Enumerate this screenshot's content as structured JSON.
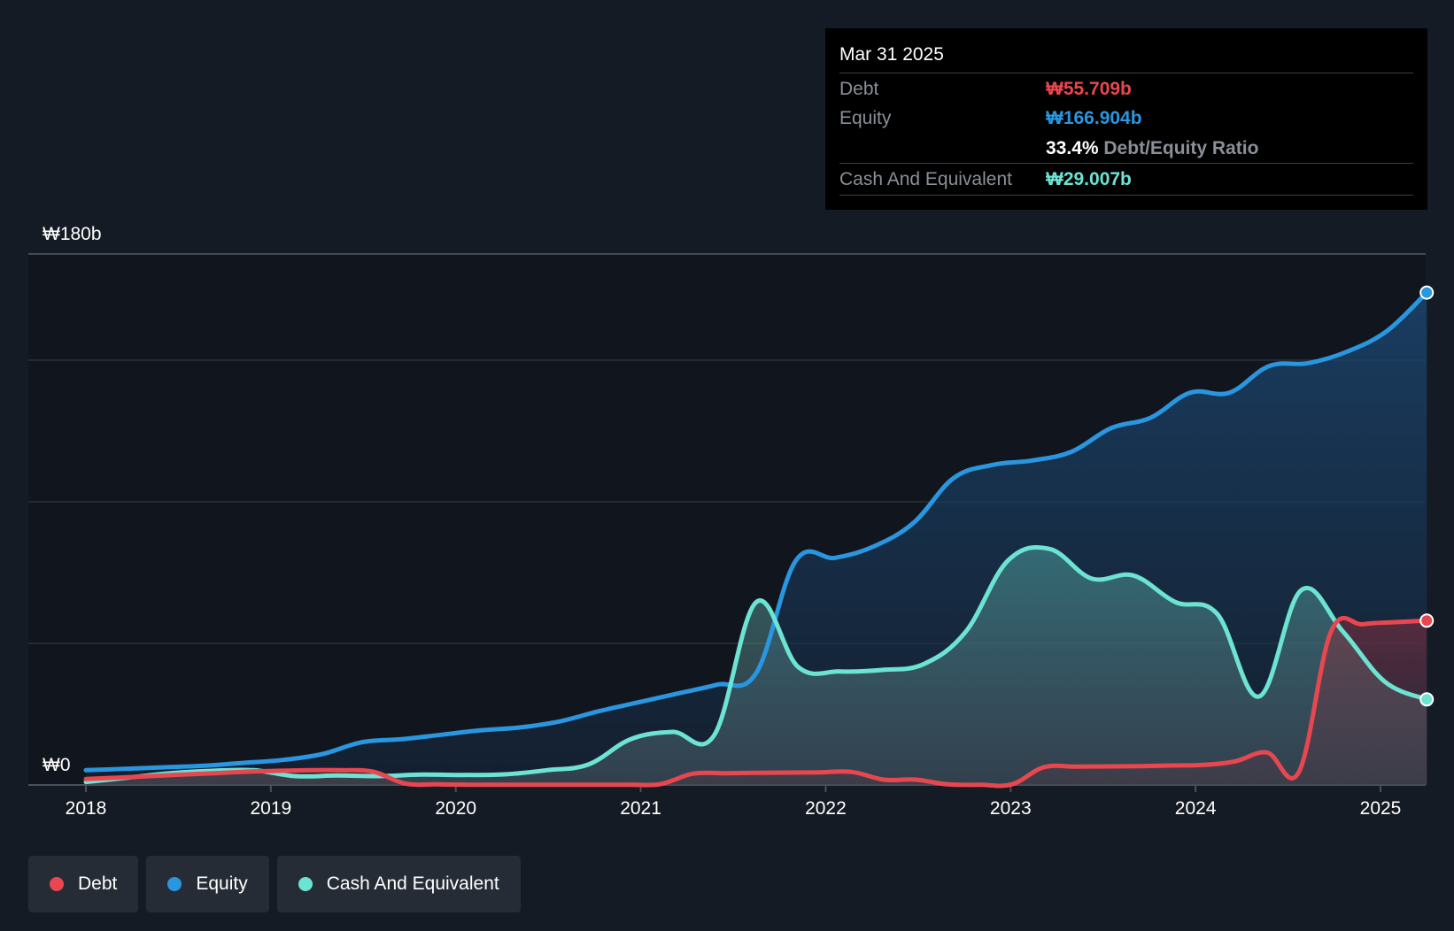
{
  "chart_data": {
    "type": "area",
    "x_start": 2018.0,
    "x_end": 2025.25,
    "xlim": [
      2017.75,
      2025.25
    ],
    "ylim": [
      0,
      180
    ],
    "y_tick_labels": [
      "₩0",
      "₩180b"
    ],
    "x_tick_labels": [
      "2018",
      "2019",
      "2020",
      "2021",
      "2022",
      "2023",
      "2024",
      "2025"
    ],
    "gridlines": [
      0,
      48,
      96,
      144,
      180
    ],
    "series": [
      {
        "name": "Debt",
        "color": "#e8474f",
        "values": [
          2,
          2.5,
          3.0,
          3.5,
          4.0,
          4.5,
          4.8,
          5.0,
          5.0,
          4.5,
          0.5,
          0.2,
          0.1,
          0.1,
          0.1,
          0.1,
          0.1,
          0.1,
          0.3,
          3.8,
          4.0,
          4.1,
          4.2,
          4.3,
          4.4,
          1.8,
          1.8,
          0.2,
          0.1,
          0.2,
          6.0,
          6.2,
          6.3,
          6.4,
          6.6,
          6.8,
          8.0,
          11.0,
          4.5,
          52.0,
          54.5,
          55.2,
          55.709
        ]
      },
      {
        "name": "Equity",
        "color": "#2a96e0",
        "values": [
          5.0,
          5.5,
          6.0,
          6.5,
          7.5,
          8.5,
          10.5,
          14.5,
          15.5,
          17.0,
          18.5,
          19.5,
          21.5,
          25.0,
          28.0,
          31.0,
          34.0,
          38.0,
          76.0,
          77.0,
          81.0,
          89.0,
          104.0,
          108.5,
          110.0,
          113.0,
          121.0,
          124.5,
          133.0,
          133.0,
          142.0,
          143.0,
          147.0,
          154.0,
          166.904
        ]
      },
      {
        "name": "Cash And Equivalent",
        "color": "#6ce3d3",
        "values": [
          1.0,
          2.5,
          4.0,
          4.8,
          5.0,
          3.0,
          3.2,
          3.0,
          3.5,
          3.4,
          3.6,
          5.0,
          7.0,
          15.5,
          18.0,
          17.0,
          62.0,
          40.0,
          38.5,
          39.0,
          41.0,
          52.0,
          76.0,
          80.0,
          70.0,
          71.0,
          62.0,
          58.0,
          30.0,
          66.0,
          52.0,
          35.0,
          29.007
        ]
      }
    ],
    "tooltip": {
      "date": "Mar 31 2025",
      "debt_label": "Debt",
      "debt_value": "₩55.709b",
      "equity_label": "Equity",
      "equity_value": "₩166.904b",
      "ratio_value": "33.4%",
      "ratio_label": "Debt/Equity Ratio",
      "cash_label": "Cash And Equivalent",
      "cash_value": "₩29.007b"
    },
    "legend": [
      "Debt",
      "Equity",
      "Cash And Equivalent"
    ],
    "colors": {
      "background": "#151b24",
      "plot_bg": "#11161e",
      "grid": "#2b313a",
      "axis": "#4a5059",
      "debt": "#e8474f",
      "equity": "#2a96e0",
      "cash": "#6ce3d3"
    }
  }
}
